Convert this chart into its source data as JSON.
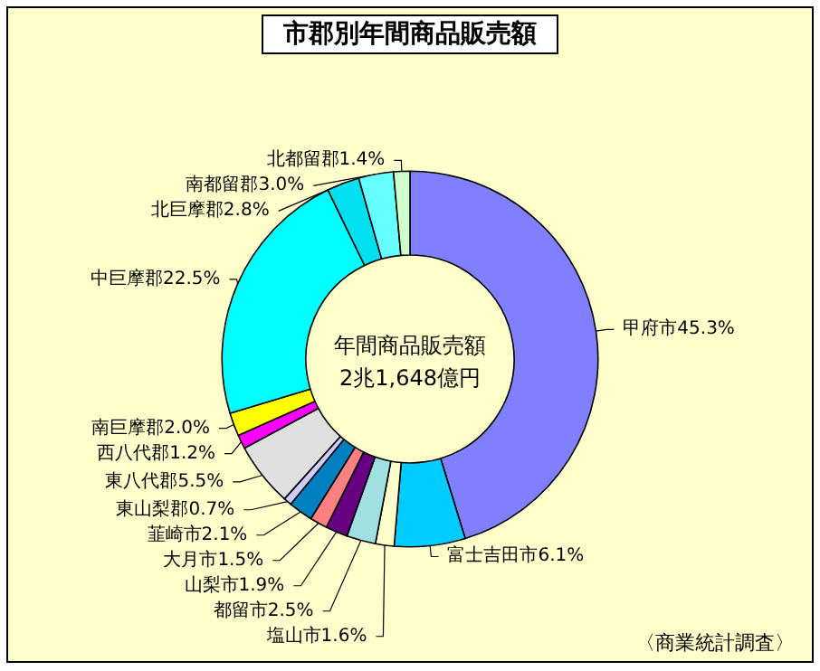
{
  "chart_data": {
    "type": "donut",
    "title": "市郡別年間商品販売額",
    "categories": [
      "甲府市",
      "富士吉田市",
      "塩山市",
      "都留市",
      "山梨市",
      "大月市",
      "韮崎市",
      "東山梨郡",
      "東八代郡",
      "西八代郡",
      "南巨摩郡",
      "中巨摩郡",
      "北巨摩郡",
      "南都留郡",
      "北都留郡"
    ],
    "values": [
      45.3,
      6.1,
      1.6,
      2.5,
      1.9,
      1.5,
      2.1,
      0.7,
      5.5,
      1.2,
      2.0,
      22.5,
      2.8,
      3.0,
      1.4
    ],
    "value_labels": [
      "45.3%",
      "6.1%",
      "1.6%",
      "2.5%",
      "1.9%",
      "1.5%",
      "2.1%",
      "0.7%",
      "5.5%",
      "1.2%",
      "2.0%",
      "22.5%",
      "2.8%",
      "3.0%",
      "1.4%"
    ],
    "colors": [
      "#8080ff",
      "#00ccff",
      "#ffffcc",
      "#a0e0e0",
      "#660080",
      "#ff8080",
      "#0080c0",
      "#ccccff",
      "#e0e0e0",
      "#ff00ff",
      "#ffff00",
      "#00ffff",
      "#00e0ee",
      "#66ffff",
      "#ccffcc"
    ],
    "annotations": [
      "年間商品販売額\n2兆1,648億円",
      "〈商業統計調査〉"
    ],
    "legend": false
  }
}
